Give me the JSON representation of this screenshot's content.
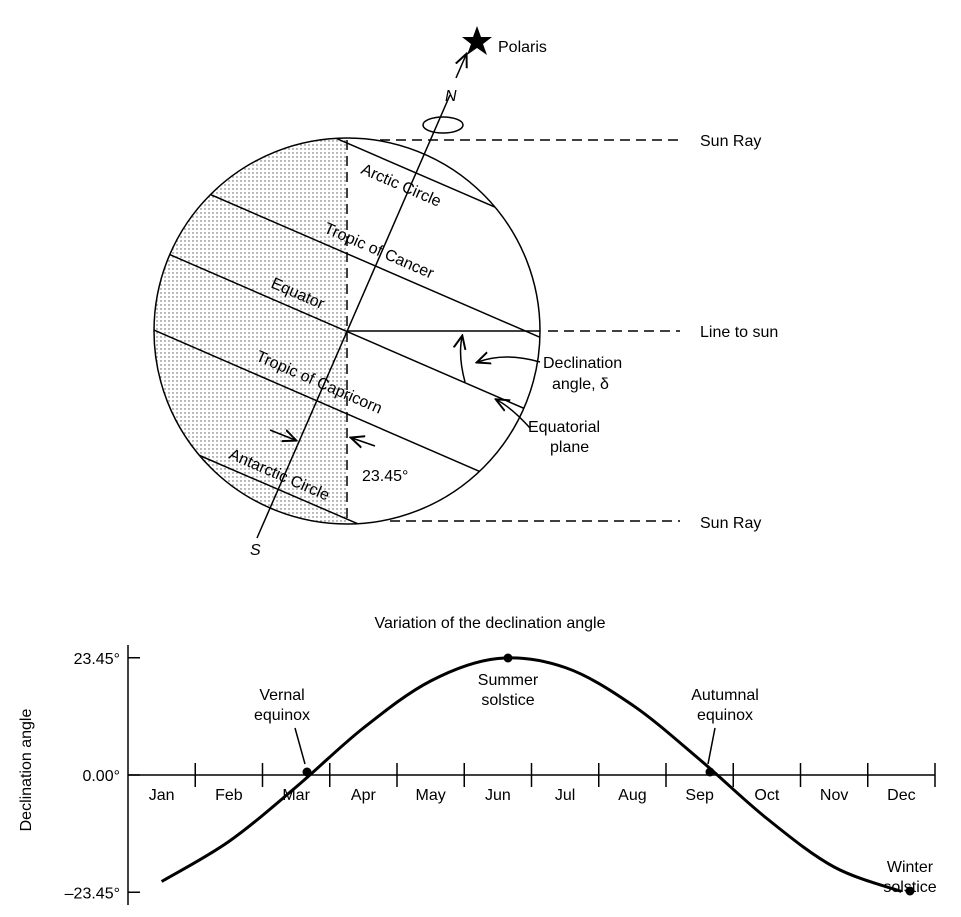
{
  "diagram": {
    "polaris": "Polaris",
    "north": "N",
    "south": "S",
    "sun_ray_top": "Sun Ray",
    "line_to_sun": "Line to sun",
    "sun_ray_bottom": "Sun Ray",
    "arctic": "Arctic Circle",
    "cancer": "Tropic of Cancer",
    "equator": "Equator",
    "capricorn": "Tropic of Capricorn",
    "antarctic": "Antarctic Circle",
    "declination": [
      "Declination",
      "angle, δ"
    ],
    "equatorial": [
      "Equatorial",
      "plane"
    ],
    "tilt": "23.45°"
  },
  "chart_data": {
    "type": "line",
    "title": "Variation of the declination angle",
    "ylabel": "Declination angle",
    "categories": [
      "Jan",
      "Feb",
      "Mar",
      "Apr",
      "May",
      "Jun",
      "Jul",
      "Aug",
      "Sep",
      "Oct",
      "Nov",
      "Dec"
    ],
    "values": [
      -21.3,
      -13.3,
      -2.4,
      9.4,
      18.8,
      23.3,
      21.5,
      14.0,
      3.1,
      -8.7,
      -18.4,
      -23.3
    ],
    "color": "#000000",
    "ylim": [
      -26,
      26
    ],
    "yticks": [
      {
        "value": 23.45,
        "label": "23.45°"
      },
      {
        "value": 0,
        "label": "0.00°"
      },
      {
        "value": -23.45,
        "label": "–23.45°"
      }
    ],
    "annotations": [
      [
        "Vernal",
        "equinox"
      ],
      [
        "Summer",
        "solstice"
      ],
      [
        "Autumnal",
        "equinox"
      ],
      [
        "Winter",
        "solstice"
      ]
    ]
  }
}
